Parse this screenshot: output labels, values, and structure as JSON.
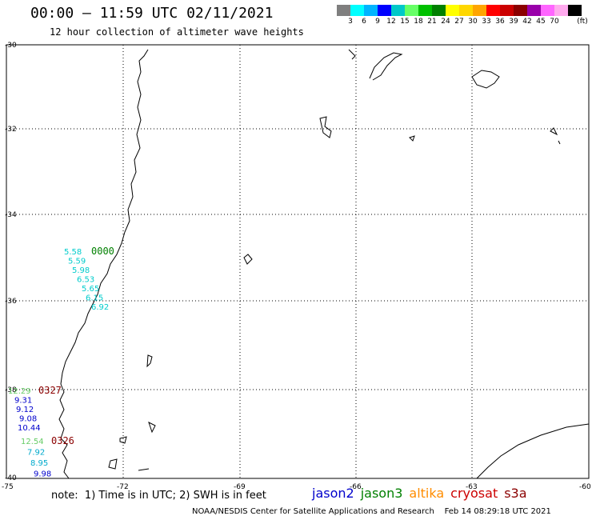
{
  "header": {
    "title": "00:00 – 11:59 UTC 02/11/2021",
    "subtitle": "12 hour collection of altimeter wave heights"
  },
  "legend": {
    "unit": "(ft)",
    "colors": [
      "#7f7f7f",
      "#00ffff",
      "#00b4ff",
      "#0000ff",
      "#00c8c8",
      "#66ff66",
      "#00c000",
      "#008000",
      "#ffff00",
      "#ffd700",
      "#ffa500",
      "#ff0000",
      "#cc0000",
      "#8b0000",
      "#9900aa",
      "#ff66ff",
      "#ffaaee",
      "#000000"
    ],
    "ticks": [
      "3",
      "6",
      "9",
      "12",
      "15",
      "18",
      "21",
      "24",
      "27",
      "30",
      "33",
      "36",
      "39",
      "42",
      "45",
      "70"
    ]
  },
  "axes": {
    "lat_labels": [
      "-30",
      "-32",
      "-34",
      "-36",
      "-38",
      "-40"
    ],
    "lon_labels": [
      "-75",
      "-72",
      "-69",
      "-66",
      "-63",
      "-60"
    ]
  },
  "tracks": [
    {
      "time": "0000",
      "time_color": "#008000",
      "swh": [
        {
          "v": "5.58",
          "color": "#00cccc"
        },
        {
          "v": "5.59",
          "color": "#00cccc"
        },
        {
          "v": "5.98",
          "color": "#00cccc"
        },
        {
          "v": "6.53",
          "color": "#00cccc"
        },
        {
          "v": "5.65",
          "color": "#00cccc"
        },
        {
          "v": "6.15",
          "color": "#00cccc"
        },
        {
          "v": "6.92",
          "color": "#00cccc"
        }
      ]
    },
    {
      "time": "0327",
      "time_color": "#8b0000",
      "swh": [
        {
          "v": "12.29",
          "color": "#66cc66"
        },
        {
          "v": "9.31",
          "color": "#0000cc"
        },
        {
          "v": "9.12",
          "color": "#0000cc"
        },
        {
          "v": "9.08",
          "color": "#0000cc"
        },
        {
          "v": "10.44",
          "color": "#0000cc"
        }
      ]
    },
    {
      "time": "0326",
      "time_color": "#8b0000",
      "swh": [
        {
          "v": "12.54",
          "color": "#66cc66"
        },
        {
          "v": "7.92",
          "color": "#00aacc"
        },
        {
          "v": "8.95",
          "color": "#00aacc"
        },
        {
          "v": "9.98",
          "color": "#0000cc"
        }
      ]
    }
  ],
  "footer": {
    "note": "note:  1) Time is in UTC; 2) SWH is in feet",
    "satellites": [
      {
        "name": "jason2",
        "color": "#0000cc"
      },
      {
        "name": "jason3",
        "color": "#008000"
      },
      {
        "name": "altika",
        "color": "#ff8c00"
      },
      {
        "name": "cryosat",
        "color": "#cc0000"
      },
      {
        "name": "s3a",
        "color": "#8b0000"
      }
    ],
    "credit": "NOAA/NESDIS Center for Satellite Applications and Research    Feb 14 08:29:18 UTC 2021"
  }
}
